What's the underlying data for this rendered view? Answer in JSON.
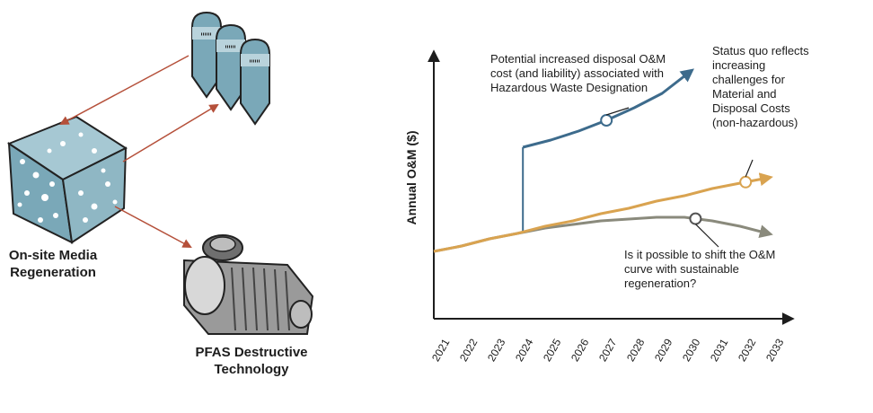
{
  "diagram": {
    "onsite_label": [
      "On-site Media",
      "Regeneration"
    ],
    "pfas_label": [
      "PFAS Destructive",
      "Technology"
    ]
  },
  "chart_data": {
    "type": "line",
    "ylabel": "Annual O&M ($)",
    "xlabel": "",
    "categories": [
      "2021",
      "2022",
      "2023",
      "2024",
      "2025",
      "2026",
      "2027",
      "2028",
      "2029",
      "2030",
      "2031",
      "2032",
      "2033"
    ],
    "series": [
      {
        "name": "",
        "color": "#3d6b8c",
        "values": [
          null,
          null,
          null,
          0.58,
          0.62,
          0.67,
          0.73,
          0.8,
          0.88,
          1.0,
          null,
          null,
          null
        ]
      },
      {
        "name": "",
        "color": "#d9a350",
        "values": [
          0.0,
          0.03,
          0.07,
          0.1,
          0.14,
          0.17,
          0.21,
          0.24,
          0.28,
          0.31,
          0.35,
          0.38,
          0.41
        ]
      },
      {
        "name": "",
        "color": "#8a8a7c",
        "values": [
          0.0,
          0.03,
          0.07,
          0.1,
          0.13,
          0.15,
          0.17,
          0.18,
          0.19,
          0.19,
          0.17,
          0.14,
          0.1
        ]
      }
    ],
    "annotations": [
      "Potential increased disposal O&M cost (and liability) associated with Hazardous Waste Designation",
      "Status quo reflects increasing challenges for Material and Disposal Costs (non-hazardous)",
      "Is it possible to shift the O&M curve with sustainable regeneration?"
    ]
  },
  "colors": {
    "blue": "#3d6b8c",
    "orange": "#d9a350",
    "gray": "#8a8a7c",
    "arrow_red": "#b5503a",
    "tank": "#7aa8b8"
  }
}
